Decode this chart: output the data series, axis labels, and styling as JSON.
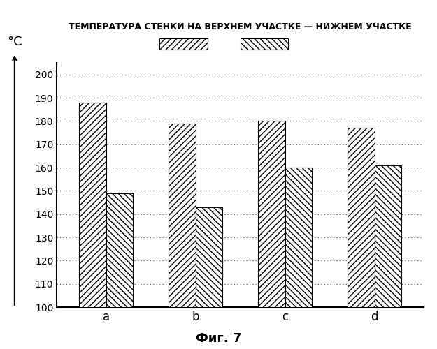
{
  "title": "ТЕМПЕРАТУРА СТЕНКИ НА ВЕРХНЕМ УЧАСТКЕ — НИЖНЕМ УЧАСТКЕ",
  "ylabel": "°С",
  "xlabel_fig": "Фиг. 7",
  "categories": [
    "a",
    "b",
    "c",
    "d"
  ],
  "series1": [
    188,
    179,
    180,
    177
  ],
  "series2": [
    149,
    143,
    160,
    161
  ],
  "ylim": [
    100,
    205
  ],
  "yticks": [
    100,
    110,
    120,
    130,
    140,
    150,
    160,
    170,
    180,
    190,
    200
  ],
  "bar_width": 0.3,
  "bg_color": "#ffffff",
  "bar1_hatch": "////",
  "bar2_hatch": ".....",
  "bar_edge_color": "#000000",
  "bar_facecolor": "#ffffff",
  "grid_color": "#555555",
  "title_fontsize": 9
}
